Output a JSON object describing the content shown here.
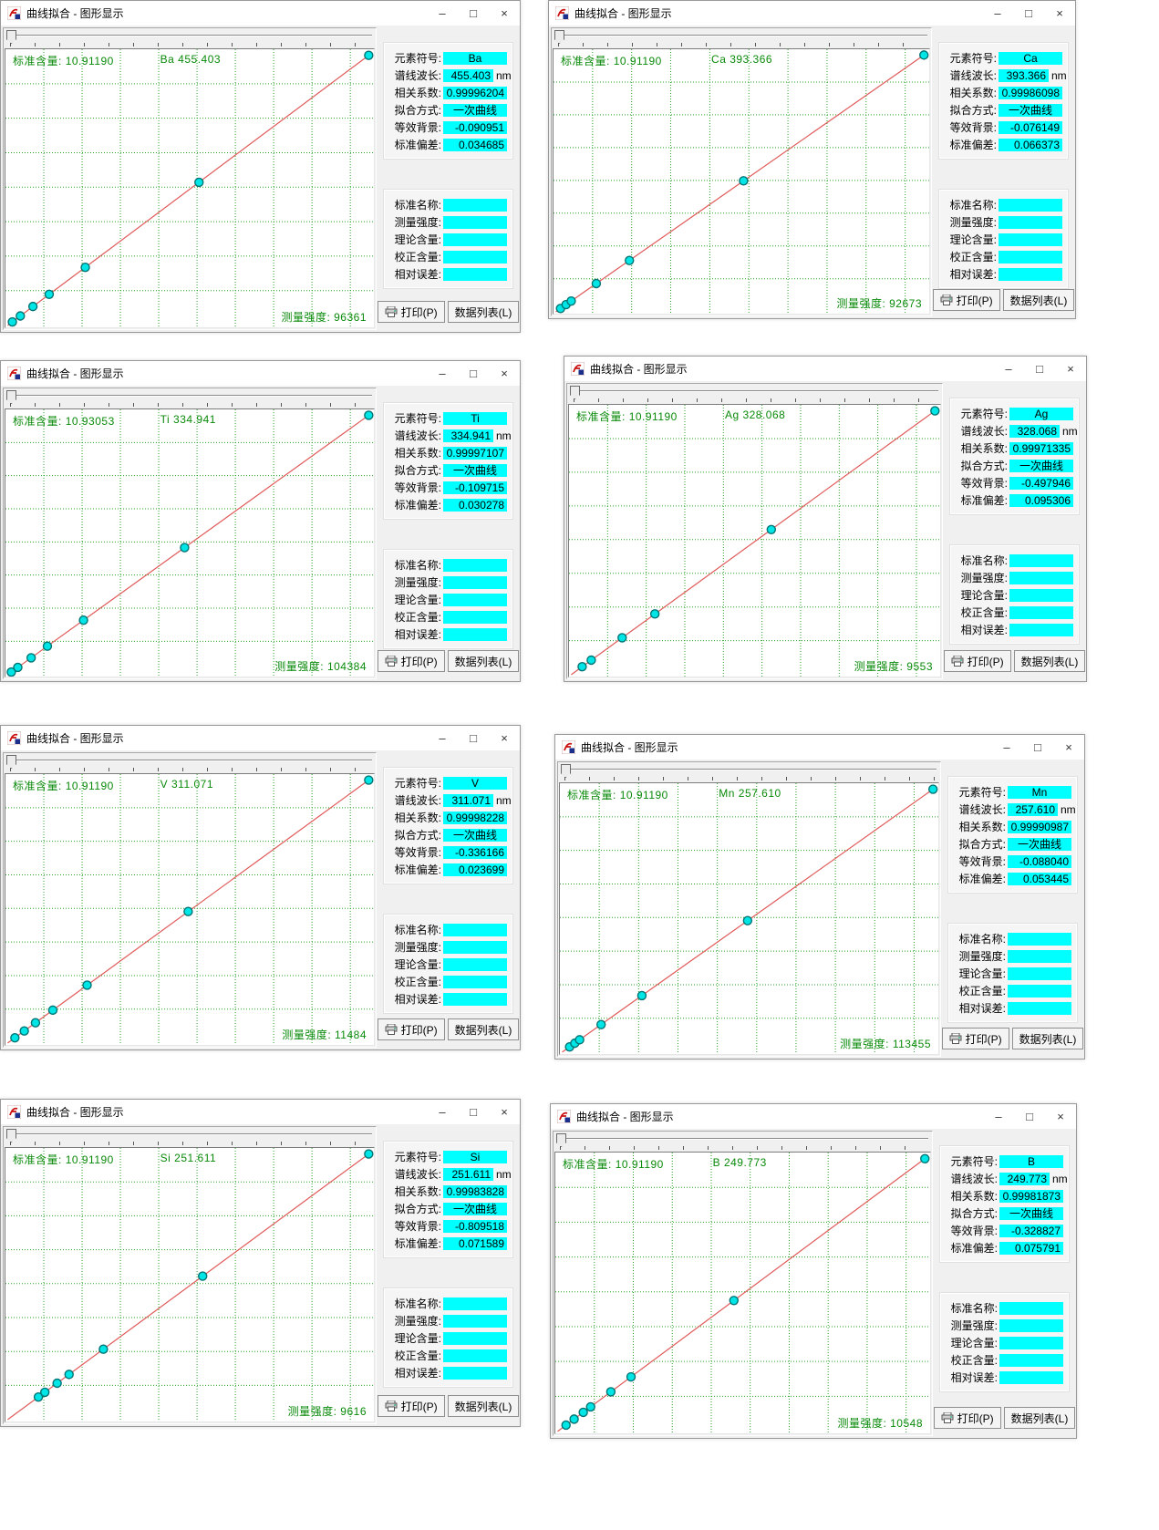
{
  "app": {
    "title": "曲线拟合 - 图形显示"
  },
  "window_controls": {
    "minimize": "–",
    "maximize": "□",
    "close": "×"
  },
  "labels": {
    "element_symbol": "元素符号:",
    "wavelength": "谱线波长:",
    "correlation": "相关系数:",
    "fit_method": "拟合方式:",
    "background": "等效背景:",
    "std_dev": "标准偏差:",
    "standard_name": "标准名称:",
    "intensity": "测量强度:",
    "theoretical": "理论含量:",
    "corrected": "校正含量:",
    "relative_error": "相对误差:",
    "standard_content": "标准含量:",
    "nm": "nm",
    "print_button": "打印(P)",
    "data_list_button": "数据列表(L)"
  },
  "windows": [
    {
      "element": "Ba",
      "standard_content": "10.91190",
      "plot_label": "Ba 455.403",
      "intensity": "96361",
      "wavelength": "455.403",
      "correlation": "0.99996204",
      "fit_method": "一次曲线",
      "background": "-0.090951",
      "std_dev": "0.034685",
      "points": [
        0.013,
        0.035,
        0.07,
        0.115,
        0.215,
        0.53,
        1.0
      ]
    },
    {
      "element": "Ca",
      "standard_content": "10.91190",
      "plot_label": "Ca 393.366",
      "intensity": "92673",
      "wavelength": "393.366",
      "correlation": "0.99986098",
      "fit_method": "一次曲线",
      "background": "-0.076149",
      "std_dev": "0.066373",
      "points": [
        0.013,
        0.028,
        0.042,
        0.11,
        0.2,
        0.51,
        1.0
      ]
    },
    {
      "element": "Ti",
      "standard_content": "10.93053",
      "plot_label": "Ti 334.941",
      "intensity": "104384",
      "wavelength": "334.941",
      "correlation": "0.99997107",
      "fit_method": "一次曲线",
      "background": "-0.109715",
      "std_dev": "0.030278",
      "points": [
        0.01,
        0.028,
        0.065,
        0.11,
        0.21,
        0.49,
        1.0
      ]
    },
    {
      "element": "Ag",
      "standard_content": "10.91190",
      "plot_label": "Ag 328.068",
      "intensity": "9553",
      "wavelength": "328.068",
      "correlation": "0.99971335",
      "fit_method": "一次曲线",
      "background": "-0.497946",
      "std_dev": "0.095306",
      "points": [
        0.03,
        0.055,
        0.14,
        0.23,
        0.55,
        1.0
      ]
    },
    {
      "element": "V",
      "standard_content": "10.91190",
      "plot_label": "V 311.071",
      "intensity": "11484",
      "wavelength": "311.071",
      "correlation": "0.99998228",
      "fit_method": "一次曲线",
      "background": "-0.336166",
      "std_dev": "0.023699",
      "points": [
        0.02,
        0.046,
        0.077,
        0.125,
        0.22,
        0.5,
        1.0
      ]
    },
    {
      "element": "Mn",
      "standard_content": "10.91190",
      "plot_label": "Mn 257.610",
      "intensity": "113455",
      "wavelength": "257.610",
      "correlation": "0.99990987",
      "fit_method": "一次曲线",
      "background": "-0.088040",
      "std_dev": "0.053445",
      "points": [
        0.02,
        0.034,
        0.047,
        0.105,
        0.215,
        0.5,
        1.0
      ]
    },
    {
      "element": "Si",
      "standard_content": "10.91190",
      "plot_label": "Si 251.611",
      "intensity": "9616",
      "wavelength": "251.611",
      "correlation": "0.99983828",
      "fit_method": "一次曲线",
      "background": "-0.809518",
      "std_dev": "0.071589",
      "points": [
        0.085,
        0.103,
        0.137,
        0.17,
        0.265,
        0.54,
        1.0
      ]
    },
    {
      "element": "B",
      "standard_content": "10.91190",
      "plot_label": "B 249.773",
      "intensity": "10548",
      "wavelength": "249.773",
      "correlation": "0.99981873",
      "fit_method": "一次曲线",
      "background": "-0.328827",
      "std_dev": "0.075791",
      "points": [
        0.023,
        0.045,
        0.07,
        0.09,
        0.145,
        0.2,
        0.48,
        1.0
      ]
    }
  ],
  "chart_data": {
    "type": "scatter",
    "note": "Each window: calibration line from origin to max standard; points as normalized fraction of full scale, y=x (linear fit).",
    "series": [
      {
        "name": "Ba 455.403",
        "x_fraction": [
          0.013,
          0.035,
          0.07,
          0.115,
          0.215,
          0.53,
          1.0
        ]
      },
      {
        "name": "Ca 393.366",
        "x_fraction": [
          0.013,
          0.028,
          0.042,
          0.11,
          0.2,
          0.51,
          1.0
        ]
      },
      {
        "name": "Ti 334.941",
        "x_fraction": [
          0.01,
          0.028,
          0.065,
          0.11,
          0.21,
          0.49,
          1.0
        ]
      },
      {
        "name": "Ag 328.068",
        "x_fraction": [
          0.03,
          0.055,
          0.14,
          0.23,
          0.55,
          1.0
        ]
      },
      {
        "name": "V 311.071",
        "x_fraction": [
          0.02,
          0.046,
          0.077,
          0.125,
          0.22,
          0.5,
          1.0
        ]
      },
      {
        "name": "Mn 257.610",
        "x_fraction": [
          0.02,
          0.034,
          0.047,
          0.105,
          0.215,
          0.5,
          1.0
        ]
      },
      {
        "name": "Si 251.611",
        "x_fraction": [
          0.085,
          0.103,
          0.137,
          0.17,
          0.265,
          0.54,
          1.0
        ]
      },
      {
        "name": "B 249.773",
        "x_fraction": [
          0.023,
          0.045,
          0.07,
          0.09,
          0.145,
          0.2,
          0.48,
          1.0
        ]
      }
    ],
    "grid": "on",
    "legend_position": "none"
  }
}
